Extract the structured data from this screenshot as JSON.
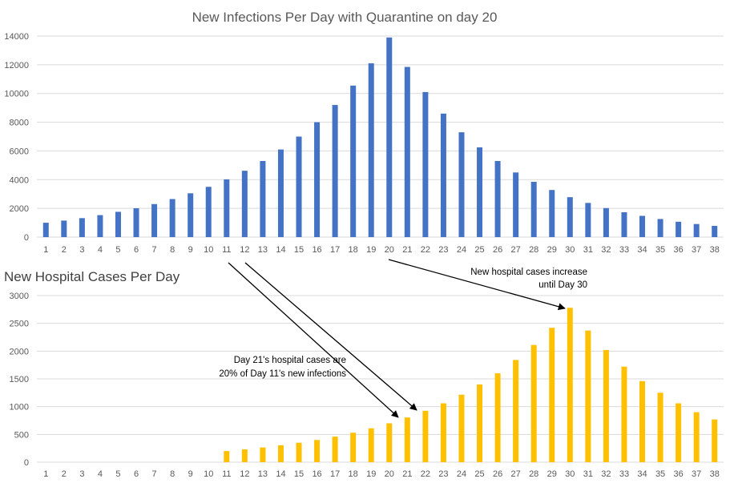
{
  "chart_data": [
    {
      "type": "bar",
      "title": "New Infections Per Day with Quarantine on day 20",
      "color": "#4472c4",
      "xlabel": "",
      "ylabel": "",
      "ylim": [
        0,
        14000
      ],
      "yticks": [
        0,
        2000,
        4000,
        6000,
        8000,
        10000,
        12000,
        14000
      ],
      "grid": true,
      "categories": [
        "1",
        "2",
        "3",
        "4",
        "5",
        "6",
        "7",
        "8",
        "9",
        "10",
        "11",
        "12",
        "13",
        "14",
        "15",
        "16",
        "17",
        "18",
        "19",
        "20",
        "21",
        "22",
        "23",
        "24",
        "25",
        "26",
        "27",
        "28",
        "29",
        "30",
        "31",
        "32",
        "33",
        "34",
        "35",
        "36",
        "37",
        "38"
      ],
      "values": [
        1000,
        1150,
        1320,
        1530,
        1760,
        2010,
        2300,
        2650,
        3050,
        3500,
        4020,
        4620,
        5300,
        6100,
        7000,
        8000,
        9200,
        10550,
        12100,
        13900,
        11850,
        10100,
        8600,
        7300,
        6250,
        5300,
        4500,
        3850,
        3280,
        2780,
        2380,
        2020,
        1730,
        1480,
        1260,
        1070,
        910,
        780
      ]
    },
    {
      "type": "bar",
      "title": "New Hospital Cases Per Day",
      "color": "#ffc000",
      "xlabel": "",
      "ylabel": "",
      "ylim": [
        0,
        3000
      ],
      "yticks": [
        0,
        500,
        1000,
        1500,
        2000,
        2500,
        3000
      ],
      "grid": true,
      "categories": [
        "1",
        "2",
        "3",
        "4",
        "5",
        "6",
        "7",
        "8",
        "9",
        "10",
        "11",
        "12",
        "13",
        "14",
        "15",
        "16",
        "17",
        "18",
        "19",
        "20",
        "21",
        "22",
        "23",
        "24",
        "25",
        "26",
        "27",
        "28",
        "29",
        "30",
        "31",
        "32",
        "33",
        "34",
        "35",
        "36",
        "37",
        "38"
      ],
      "values": [
        0,
        0,
        0,
        0,
        0,
        0,
        0,
        0,
        0,
        0,
        200,
        230,
        265,
        305,
        350,
        400,
        460,
        530,
        610,
        700,
        805,
        925,
        1060,
        1215,
        1400,
        1600,
        1840,
        2110,
        2420,
        2780,
        2370,
        2020,
        1720,
        1460,
        1250,
        1060,
        900,
        770
      ],
      "annotations": [
        {
          "lines": [
            "Day 21's hospital cases are",
            "20% of Day 11's new infections"
          ],
          "anchor": "end"
        },
        {
          "lines": [
            "New hospital cases increase",
            "until Day 30"
          ],
          "anchor": "end"
        }
      ]
    }
  ]
}
